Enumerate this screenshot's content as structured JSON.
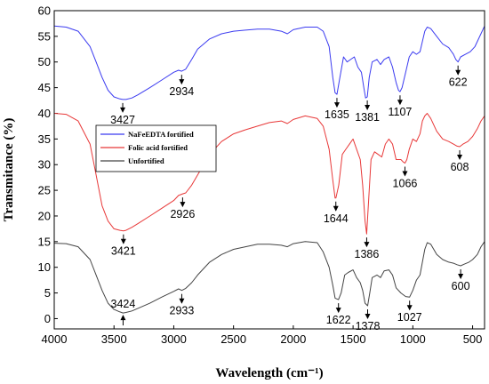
{
  "chart_data": {
    "type": "line",
    "title": "",
    "xlabel": "Wavelength (cm⁻¹)",
    "ylabel": "Transmitance (%)",
    "xlim": [
      4000,
      400
    ],
    "ylim": [
      -2,
      60
    ],
    "x_ticks": [
      {
        "value": 4000,
        "label": "4000"
      },
      {
        "value": 3500,
        "label": "3500"
      },
      {
        "value": 3000,
        "label": "3000"
      },
      {
        "value": 2500,
        "label": "2500"
      },
      {
        "value": 2000,
        "label": "2000"
      },
      {
        "value": 1500,
        "label": "1500"
      },
      {
        "value": 1000,
        "label": "1000"
      },
      {
        "value": 500,
        "label": "500"
      }
    ],
    "y_ticks": [
      {
        "value": 0,
        "label": "0"
      },
      {
        "value": 5,
        "label": "5"
      },
      {
        "value": 10,
        "label": "10"
      },
      {
        "value": 15,
        "label": "15"
      },
      {
        "value": 20,
        "label": "20"
      },
      {
        "value": 25,
        "label": "25"
      },
      {
        "value": 30,
        "label": "30"
      },
      {
        "value": 35,
        "label": "35"
      },
      {
        "value": 40,
        "label": "40"
      },
      {
        "value": 45,
        "label": "45"
      },
      {
        "value": 50,
        "label": "50"
      },
      {
        "value": 55,
        "label": "55"
      },
      {
        "value": 60,
        "label": "60"
      }
    ],
    "grid": false,
    "legend": {
      "position": "center-left",
      "entries": [
        "NaFeEDTA fortified",
        "Folic acid fortified",
        "Unfortified"
      ]
    },
    "series": [
      {
        "name": "NaFeEDTA fortified",
        "color": "#3b3bf0",
        "points": [
          [
            4000,
            57
          ],
          [
            3900,
            56.8
          ],
          [
            3800,
            56
          ],
          [
            3700,
            53
          ],
          [
            3650,
            50
          ],
          [
            3600,
            47
          ],
          [
            3550,
            44.5
          ],
          [
            3500,
            43.2
          ],
          [
            3450,
            42.8
          ],
          [
            3427,
            42.7
          ],
          [
            3400,
            42.7
          ],
          [
            3350,
            43
          ],
          [
            3300,
            43.6
          ],
          [
            3200,
            45
          ],
          [
            3100,
            46.5
          ],
          [
            3000,
            48
          ],
          [
            2960,
            48.4
          ],
          [
            2934,
            48.2
          ],
          [
            2900,
            48.6
          ],
          [
            2850,
            50.5
          ],
          [
            2800,
            52.5
          ],
          [
            2700,
            54.5
          ],
          [
            2600,
            55.5
          ],
          [
            2500,
            56
          ],
          [
            2400,
            56.2
          ],
          [
            2300,
            56.4
          ],
          [
            2200,
            56.4
          ],
          [
            2100,
            56
          ],
          [
            2050,
            55.5
          ],
          [
            2000,
            56.3
          ],
          [
            1900,
            56.8
          ],
          [
            1800,
            56.8
          ],
          [
            1750,
            56
          ],
          [
            1700,
            53
          ],
          [
            1670,
            47
          ],
          [
            1650,
            44
          ],
          [
            1635,
            43.7
          ],
          [
            1610,
            47
          ],
          [
            1580,
            51
          ],
          [
            1550,
            50
          ],
          [
            1520,
            50.5
          ],
          [
            1490,
            51
          ],
          [
            1460,
            49
          ],
          [
            1430,
            48
          ],
          [
            1410,
            45
          ],
          [
            1395,
            43
          ],
          [
            1381,
            43.2
          ],
          [
            1365,
            47
          ],
          [
            1340,
            50
          ],
          [
            1300,
            50.5
          ],
          [
            1270,
            49.5
          ],
          [
            1240,
            50.5
          ],
          [
            1200,
            51
          ],
          [
            1170,
            49
          ],
          [
            1140,
            46
          ],
          [
            1120,
            44.5
          ],
          [
            1107,
            44.2
          ],
          [
            1090,
            45
          ],
          [
            1060,
            48
          ],
          [
            1030,
            51
          ],
          [
            1000,
            52
          ],
          [
            970,
            51.5
          ],
          [
            940,
            52
          ],
          [
            920,
            54
          ],
          [
            900,
            56
          ],
          [
            880,
            56.8
          ],
          [
            850,
            56.5
          ],
          [
            800,
            55
          ],
          [
            750,
            53.5
          ],
          [
            700,
            52.8
          ],
          [
            660,
            51.5
          ],
          [
            640,
            50.5
          ],
          [
            622,
            50
          ],
          [
            600,
            51
          ],
          [
            560,
            51.5
          ],
          [
            520,
            52
          ],
          [
            480,
            53
          ],
          [
            440,
            55
          ],
          [
            400,
            57
          ]
        ]
      },
      {
        "name": "Folic acid fortified",
        "color": "#e83838",
        "points": [
          [
            4000,
            40
          ],
          [
            3900,
            39.8
          ],
          [
            3800,
            38.5
          ],
          [
            3700,
            34
          ],
          [
            3650,
            28
          ],
          [
            3600,
            22
          ],
          [
            3550,
            19
          ],
          [
            3500,
            17.5
          ],
          [
            3450,
            17.2
          ],
          [
            3421,
            17.1
          ],
          [
            3400,
            17.2
          ],
          [
            3350,
            17.8
          ],
          [
            3300,
            18.5
          ],
          [
            3200,
            20
          ],
          [
            3100,
            21.5
          ],
          [
            3000,
            23
          ],
          [
            2960,
            24
          ],
          [
            2926,
            24.3
          ],
          [
            2900,
            24.5
          ],
          [
            2850,
            26
          ],
          [
            2800,
            28
          ],
          [
            2700,
            32
          ],
          [
            2600,
            34.5
          ],
          [
            2500,
            36
          ],
          [
            2400,
            36.8
          ],
          [
            2300,
            37.5
          ],
          [
            2200,
            38.2
          ],
          [
            2100,
            38.5
          ],
          [
            2050,
            38
          ],
          [
            2000,
            38.8
          ],
          [
            1900,
            39.5
          ],
          [
            1800,
            39
          ],
          [
            1750,
            37.5
          ],
          [
            1700,
            33
          ],
          [
            1670,
            27
          ],
          [
            1650,
            23.5
          ],
          [
            1644,
            23.5
          ],
          [
            1620,
            26
          ],
          [
            1590,
            32
          ],
          [
            1560,
            33
          ],
          [
            1530,
            34
          ],
          [
            1500,
            35
          ],
          [
            1470,
            33
          ],
          [
            1440,
            31
          ],
          [
            1420,
            26
          ],
          [
            1400,
            19
          ],
          [
            1386,
            16.5
          ],
          [
            1370,
            23
          ],
          [
            1350,
            31
          ],
          [
            1320,
            32.5
          ],
          [
            1290,
            32
          ],
          [
            1260,
            31.5
          ],
          [
            1230,
            34
          ],
          [
            1200,
            35
          ],
          [
            1170,
            34
          ],
          [
            1140,
            31
          ],
          [
            1100,
            31
          ],
          [
            1080,
            30.5
          ],
          [
            1066,
            30.3
          ],
          [
            1050,
            31
          ],
          [
            1030,
            33
          ],
          [
            1000,
            35
          ],
          [
            970,
            34.5
          ],
          [
            940,
            36
          ],
          [
            920,
            38.5
          ],
          [
            900,
            39.5
          ],
          [
            880,
            40
          ],
          [
            850,
            39
          ],
          [
            800,
            36.5
          ],
          [
            750,
            35
          ],
          [
            700,
            34.5
          ],
          [
            660,
            34
          ],
          [
            630,
            33.6
          ],
          [
            608,
            33.5
          ],
          [
            580,
            34
          ],
          [
            540,
            34.5
          ],
          [
            500,
            35.5
          ],
          [
            460,
            37
          ],
          [
            430,
            38.5
          ],
          [
            400,
            39.5
          ]
        ]
      },
      {
        "name": "Unfortified",
        "color": "#444444",
        "points": [
          [
            4000,
            14.7
          ],
          [
            3900,
            14.6
          ],
          [
            3800,
            14
          ],
          [
            3700,
            11.5
          ],
          [
            3650,
            8.5
          ],
          [
            3600,
            5.5
          ],
          [
            3550,
            3
          ],
          [
            3500,
            1.8
          ],
          [
            3450,
            1.3
          ],
          [
            3424,
            1.1
          ],
          [
            3400,
            1.2
          ],
          [
            3350,
            1.5
          ],
          [
            3300,
            2
          ],
          [
            3200,
            3
          ],
          [
            3100,
            4.2
          ],
          [
            3000,
            5.3
          ],
          [
            2960,
            5.8
          ],
          [
            2933,
            5.5
          ],
          [
            2900,
            5.9
          ],
          [
            2850,
            7
          ],
          [
            2800,
            8.5
          ],
          [
            2700,
            11
          ],
          [
            2600,
            12.5
          ],
          [
            2500,
            13.5
          ],
          [
            2400,
            14
          ],
          [
            2300,
            14.5
          ],
          [
            2200,
            14.5
          ],
          [
            2100,
            14.3
          ],
          [
            2050,
            14
          ],
          [
            2000,
            14.6
          ],
          [
            1900,
            15
          ],
          [
            1800,
            14.8
          ],
          [
            1750,
            13
          ],
          [
            1700,
            10
          ],
          [
            1670,
            6.5
          ],
          [
            1650,
            4
          ],
          [
            1622,
            3.7
          ],
          [
            1600,
            5
          ],
          [
            1570,
            8.5
          ],
          [
            1540,
            9
          ],
          [
            1500,
            9.5
          ],
          [
            1470,
            8
          ],
          [
            1440,
            7
          ],
          [
            1420,
            5.5
          ],
          [
            1400,
            3
          ],
          [
            1378,
            2.5
          ],
          [
            1360,
            5
          ],
          [
            1340,
            8
          ],
          [
            1300,
            8.5
          ],
          [
            1270,
            8
          ],
          [
            1240,
            9.3
          ],
          [
            1200,
            9.5
          ],
          [
            1170,
            8.5
          ],
          [
            1140,
            6
          ],
          [
            1100,
            5
          ],
          [
            1060,
            4.3
          ],
          [
            1027,
            4.2
          ],
          [
            1000,
            5.5
          ],
          [
            970,
            7.5
          ],
          [
            940,
            8.5
          ],
          [
            920,
            11
          ],
          [
            900,
            13.5
          ],
          [
            880,
            14.8
          ],
          [
            850,
            14.5
          ],
          [
            800,
            12.5
          ],
          [
            750,
            11.5
          ],
          [
            700,
            11
          ],
          [
            660,
            10.8
          ],
          [
            630,
            10.5
          ],
          [
            600,
            10.3
          ],
          [
            570,
            10.6
          ],
          [
            530,
            11
          ],
          [
            500,
            11.5
          ],
          [
            460,
            12.5
          ],
          [
            430,
            14
          ],
          [
            400,
            15
          ]
        ]
      }
    ],
    "annotations": [
      {
        "label": "3427",
        "x": 3427,
        "y": 42.7,
        "direction": "down"
      },
      {
        "label": "2934",
        "x": 2934,
        "y": 48.2,
        "direction": "down"
      },
      {
        "label": "1635",
        "x": 1635,
        "y": 43.7,
        "direction": "down"
      },
      {
        "label": "1381",
        "x": 1381,
        "y": 43.2,
        "direction": "down"
      },
      {
        "label": "1107",
        "x": 1107,
        "y": 44.2,
        "direction": "down"
      },
      {
        "label": "622",
        "x": 622,
        "y": 50,
        "direction": "down"
      },
      {
        "label": "3421",
        "x": 3421,
        "y": 17.1,
        "direction": "down"
      },
      {
        "label": "2926",
        "x": 2926,
        "y": 24.3,
        "direction": "down"
      },
      {
        "label": "1644",
        "x": 1644,
        "y": 23.5,
        "direction": "down"
      },
      {
        "label": "1386",
        "x": 1386,
        "y": 16.5,
        "direction": "down"
      },
      {
        "label": "1066",
        "x": 1066,
        "y": 30.3,
        "direction": "down"
      },
      {
        "label": "608",
        "x": 608,
        "y": 33.5,
        "direction": "down"
      },
      {
        "label": "3424",
        "x": 3424,
        "y": 1.1,
        "direction": "up"
      },
      {
        "label": "2933",
        "x": 2933,
        "y": 5.5,
        "direction": "down"
      },
      {
        "label": "1622",
        "x": 1622,
        "y": 3.7,
        "direction": "down"
      },
      {
        "label": "1378",
        "x": 1378,
        "y": 2.5,
        "direction": "down"
      },
      {
        "label": "1027",
        "x": 1027,
        "y": 4.2,
        "direction": "down"
      },
      {
        "label": "600",
        "x": 600,
        "y": 10.3,
        "direction": "down"
      }
    ]
  }
}
